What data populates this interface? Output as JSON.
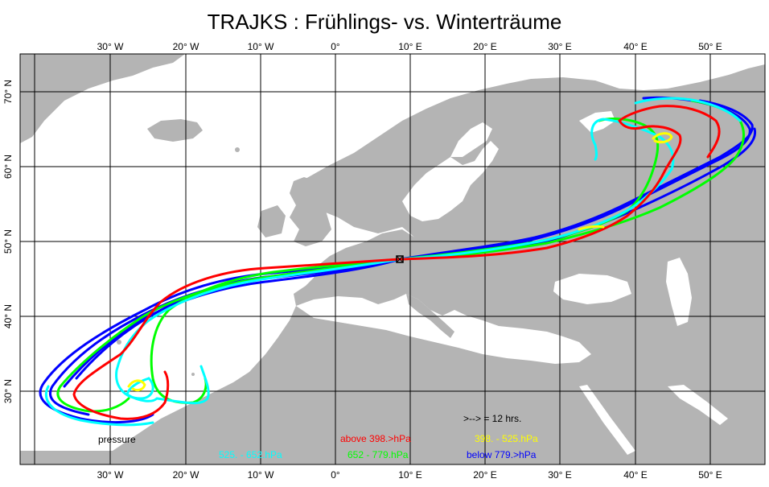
{
  "title": "TRAJKS : Frühlings- vs. Winterträume",
  "lon_labels": [
    "30° W",
    "20° W",
    "10° W",
    "0°",
    "10° E",
    "20° E",
    "30° E",
    "40° E",
    "50° E"
  ],
  "lat_labels": [
    "70° N",
    "60° N",
    "50° N",
    "40° N",
    "30° N"
  ],
  "colors": {
    "land": "#b4b4b4",
    "sea": "#ffffff",
    "grid": "#000000",
    "above": "#ff0000",
    "mid_upper": "#ffff00",
    "mid_lower": "#00ff00",
    "low_mid": "#00ffff",
    "below": "#0000ff"
  },
  "legend": {
    "interval_note": ">--> = 12 hrs.",
    "pressure_label": "pressure",
    "above": "above  398.>hPa",
    "range_398_525": "398. -    525.hPa",
    "range_525_652": "525. -    652.hPa",
    "range_652_779": "652  -    779.hPa",
    "below": "below  779.>hPa"
  },
  "start_point": "10° E, 47° N"
}
